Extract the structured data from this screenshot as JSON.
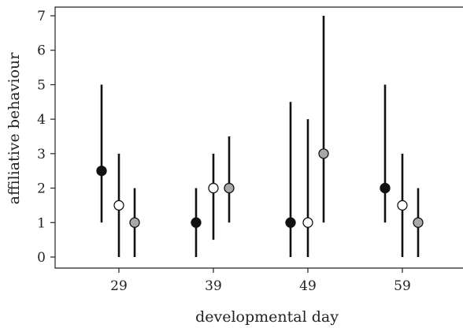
{
  "chart_data": {
    "type": "scatter",
    "title": "",
    "xlabel": "developmental day",
    "ylabel": "affiliative behaviour",
    "categories": [
      "29",
      "39",
      "49",
      "59"
    ],
    "ylim": [
      0,
      7
    ],
    "yticks": [
      0,
      1,
      2,
      3,
      4,
      5,
      6,
      7
    ],
    "grid": false,
    "legend": "none",
    "series": [
      {
        "fill": "#111111",
        "points": [
          {
            "x": "29",
            "y": 2.5,
            "low": 1,
            "high": 5
          },
          {
            "x": "39",
            "y": 1,
            "low": 0,
            "high": 2
          },
          {
            "x": "49",
            "y": 1,
            "low": 0,
            "high": 4.5
          },
          {
            "x": "59",
            "y": 2,
            "low": 1,
            "high": 5
          }
        ]
      },
      {
        "fill": "#ffffff",
        "points": [
          {
            "x": "29",
            "y": 1.5,
            "low": 0,
            "high": 3
          },
          {
            "x": "39",
            "y": 2,
            "low": 0.5,
            "high": 3
          },
          {
            "x": "49",
            "y": 1,
            "low": 0,
            "high": 4
          },
          {
            "x": "59",
            "y": 1.5,
            "low": 0,
            "high": 3
          }
        ]
      },
      {
        "fill": "#a8a8a8",
        "points": [
          {
            "x": "29",
            "y": 1,
            "low": 0,
            "high": 2
          },
          {
            "x": "39",
            "y": 2,
            "low": 1,
            "high": 3.5
          },
          {
            "x": "49",
            "y": 3,
            "low": 1,
            "high": 7
          },
          {
            "x": "59",
            "y": 1,
            "low": 0,
            "high": 2
          }
        ]
      }
    ]
  }
}
